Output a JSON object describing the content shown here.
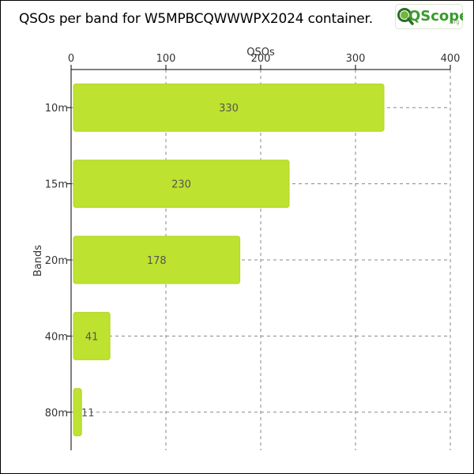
{
  "page": {
    "title": "QSOs per band for W5MPBCQWWWPX2024 container.",
    "logo_text": "QScope",
    "logo_suffix": ".org"
  },
  "colors": {
    "bar": "#bde22f",
    "bar_stroke": "#b2d52a",
    "grid": "#888888",
    "logo_green": "#3a9b2e"
  },
  "chart_data": {
    "type": "bar",
    "orientation": "horizontal",
    "title": "QSOs per band for W5MPBCQWWWPX2024 container.",
    "xlabel": "QSOs",
    "ylabel": "Bands",
    "categories": [
      "10m",
      "15m",
      "20m",
      "40m",
      "80m"
    ],
    "values": [
      330,
      230,
      178,
      41,
      11
    ],
    "data_labels": [
      "330",
      "230",
      "178",
      "41",
      "11"
    ],
    "xlim": [
      0,
      400
    ],
    "xticks": [
      0,
      100,
      200,
      300,
      400
    ],
    "x_axis_position": "top",
    "grid": true
  }
}
